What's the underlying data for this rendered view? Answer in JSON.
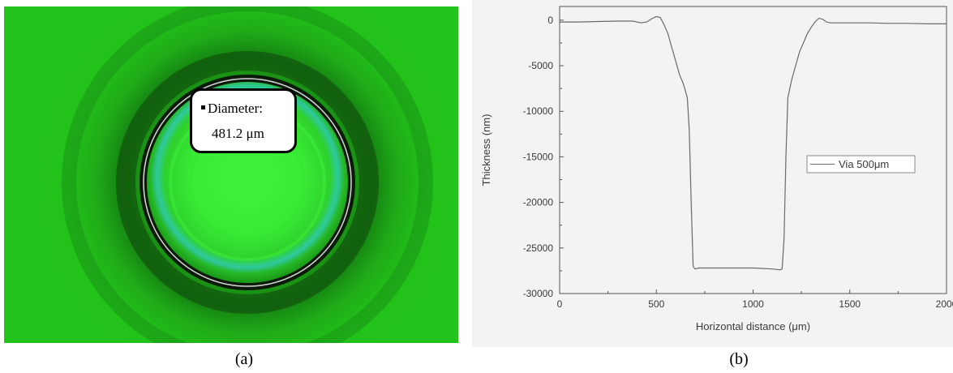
{
  "panel_a": {
    "callout_label": "Diameter:",
    "callout_value": "481.2 μm",
    "caption": "(a)"
  },
  "panel_b": {
    "caption": "(b)"
  },
  "colors": {
    "background_green": "#22c21a",
    "bright_green": "#3df23a",
    "dark_ring": "#0b1a0a",
    "line": "#6a6a6a"
  },
  "chart_data": {
    "type": "line",
    "xlabel": "Horizontal distance (μm)",
    "ylabel": "Thickness (nm)",
    "xlim": [
      0,
      2000
    ],
    "ylim": [
      -30000,
      1500
    ],
    "xticks": [
      0,
      500,
      1000,
      1500,
      2000
    ],
    "yticks": [
      0,
      -5000,
      -10000,
      -15000,
      -20000,
      -25000,
      -30000
    ],
    "legend_position": "right-middle",
    "series": [
      {
        "name": "Via 500μm",
        "x": [
          0,
          100,
          200,
          300,
          380,
          420,
          450,
          480,
          500,
          520,
          540,
          560,
          580,
          600,
          620,
          640,
          660,
          670,
          680,
          690,
          700,
          720,
          800,
          900,
          1000,
          1100,
          1140,
          1150,
          1160,
          1170,
          1180,
          1200,
          1220,
          1240,
          1260,
          1280,
          1300,
          1320,
          1340,
          1360,
          1380,
          1400,
          1500,
          1600,
          1700,
          1800,
          1900,
          2000
        ],
        "y": [
          -200,
          -200,
          -150,
          -100,
          -100,
          -300,
          -200,
          200,
          400,
          300,
          -500,
          -1500,
          -3000,
          -4500,
          -6000,
          -7000,
          -8500,
          -12000,
          -20000,
          -27000,
          -27300,
          -27200,
          -27200,
          -27200,
          -27200,
          -27300,
          -27400,
          -27300,
          -24000,
          -15000,
          -8500,
          -6500,
          -5000,
          -3500,
          -2500,
          -1500,
          -800,
          -200,
          200,
          100,
          -200,
          -300,
          -300,
          -300,
          -350,
          -350,
          -400,
          -400
        ]
      }
    ]
  }
}
